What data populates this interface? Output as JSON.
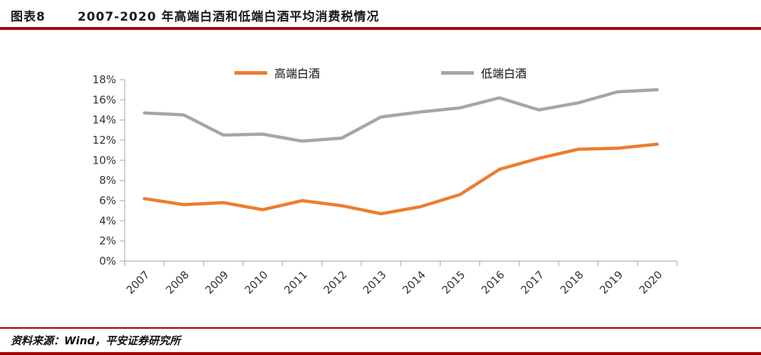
{
  "header": {
    "label": "图表8",
    "title": "2007-2020 年高端白酒和低端白酒平均消费税情况"
  },
  "footer": {
    "source": "资料来源：Wind，平安证券研究所"
  },
  "colors": {
    "accent_red": "#A00000",
    "highend_orange": "#ED7D31",
    "lowend_gray": "#A6A6A6",
    "axis_gray": "#BFBFBF"
  },
  "chart_data": {
    "type": "line",
    "title": "2007-2020 年高端白酒和低端白酒平均消费税情况",
    "categories": [
      "2007",
      "2008",
      "2009",
      "2010",
      "2011",
      "2012",
      "2013",
      "2014",
      "2015",
      "2016",
      "2017",
      "2018",
      "2019",
      "2020"
    ],
    "series": [
      {
        "name": "高端白酒",
        "color": "#ED7D31",
        "values": [
          6.2,
          5.6,
          5.8,
          5.1,
          6.0,
          5.5,
          4.7,
          5.4,
          6.6,
          9.1,
          10.2,
          11.1,
          11.2,
          11.6
        ]
      },
      {
        "name": "低端白酒",
        "color": "#A6A6A6",
        "values": [
          14.7,
          14.5,
          12.5,
          12.6,
          11.9,
          12.2,
          14.3,
          14.8,
          15.2,
          16.2,
          15.0,
          15.7,
          16.8,
          17.0
        ]
      }
    ],
    "xlabel": "",
    "ylabel": "",
    "ylim": [
      0,
      18
    ],
    "ytick_step": 2,
    "ytick_suffix": "%",
    "legend_position": "top",
    "grid": false
  }
}
